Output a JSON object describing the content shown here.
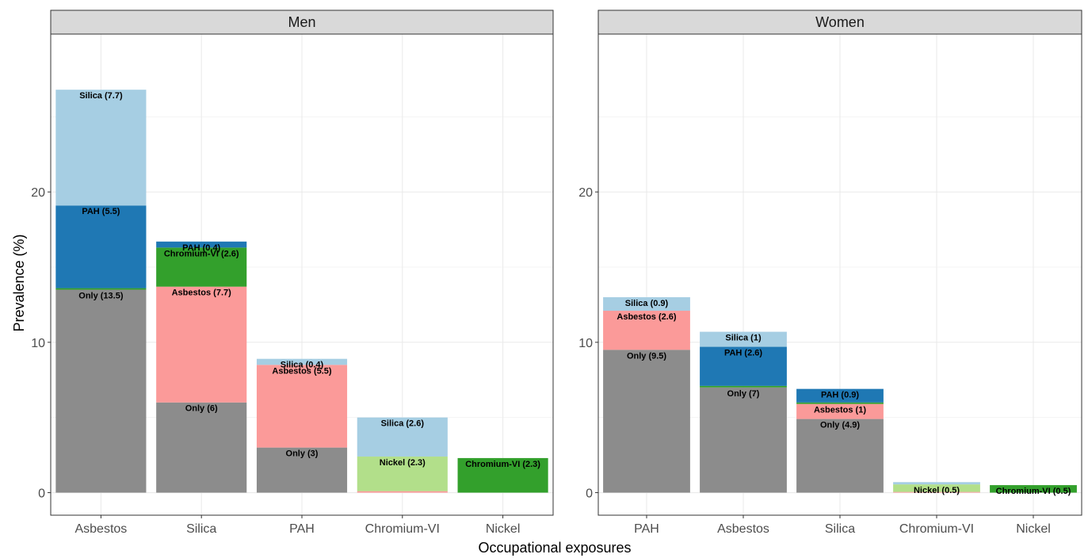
{
  "chart_data": {
    "type": "bar",
    "stacked": true,
    "xlabel": "Occupational exposures",
    "ylabel": "Prevalence (%)",
    "ylim": [
      -1.5,
      30.5
    ],
    "y_ticks": [
      0,
      10,
      20
    ],
    "grid": true,
    "colors": {
      "Only": "#8c8c8c",
      "Asbestos": "#fb9a99",
      "Silica": "#a6cee3",
      "PAH": "#1f78b4",
      "Chromium-VI": "#33a02c",
      "Nickel": "#b2df8a"
    },
    "panels": [
      {
        "title": "Men",
        "categories": [
          "Asbestos",
          "Silica",
          "PAH",
          "Chromium-VI",
          "Nickel"
        ],
        "bars": [
          {
            "category": "Asbestos",
            "segments": [
              {
                "series": "Only",
                "value": 13.5,
                "label": "Only (13.5)"
              },
              {
                "series": "Chromium-VI",
                "value": 0.1,
                "label": ""
              },
              {
                "series": "PAH",
                "value": 5.5,
                "label": "PAH (5.5)"
              },
              {
                "series": "Silica",
                "value": 7.7,
                "label": "Silica (7.7)"
              }
            ]
          },
          {
            "category": "Silica",
            "segments": [
              {
                "series": "Only",
                "value": 6,
                "label": "Only (6)"
              },
              {
                "series": "Asbestos",
                "value": 7.7,
                "label": "Asbestos (7.7)"
              },
              {
                "series": "Chromium-VI",
                "value": 2.6,
                "label": "Chromium-VI (2.6)"
              },
              {
                "series": "PAH",
                "value": 0.4,
                "label": "PAH (0.4)"
              }
            ]
          },
          {
            "category": "PAH",
            "segments": [
              {
                "series": "Only",
                "value": 3,
                "label": "Only (3)"
              },
              {
                "series": "Asbestos",
                "value": 5.5,
                "label": "Asbestos (5.5)"
              },
              {
                "series": "Silica",
                "value": 0.4,
                "label": "Silica (0.4)"
              }
            ]
          },
          {
            "category": "Chromium-VI",
            "segments": [
              {
                "series": "Asbestos",
                "value": 0.1,
                "label": ""
              },
              {
                "series": "Nickel",
                "value": 2.3,
                "label": "Nickel (2.3)"
              },
              {
                "series": "Silica",
                "value": 2.6,
                "label": "Silica (2.6)"
              }
            ]
          },
          {
            "category": "Nickel",
            "segments": [
              {
                "series": "Chromium-VI",
                "value": 2.3,
                "label": "Chromium-VI (2.3)"
              }
            ]
          }
        ]
      },
      {
        "title": "Women",
        "categories": [
          "PAH",
          "Asbestos",
          "Silica",
          "Chromium-VI",
          "Nickel"
        ],
        "bars": [
          {
            "category": "PAH",
            "segments": [
              {
                "series": "Only",
                "value": 9.5,
                "label": "Only (9.5)"
              },
              {
                "series": "Asbestos",
                "value": 2.6,
                "label": "Asbestos (2.6)"
              },
              {
                "series": "Silica",
                "value": 0.9,
                "label": "Silica (0.9)"
              }
            ]
          },
          {
            "category": "Asbestos",
            "segments": [
              {
                "series": "Only",
                "value": 7,
                "label": "Only (7)"
              },
              {
                "series": "Chromium-VI",
                "value": 0.1,
                "label": ""
              },
              {
                "series": "PAH",
                "value": 2.6,
                "label": "PAH (2.6)"
              },
              {
                "series": "Silica",
                "value": 1,
                "label": "Silica (1)"
              }
            ]
          },
          {
            "category": "Silica",
            "segments": [
              {
                "series": "Only",
                "value": 4.9,
                "label": "Only (4.9)"
              },
              {
                "series": "Asbestos",
                "value": 1,
                "label": "Asbestos (1)"
              },
              {
                "series": "Chromium-VI",
                "value": 0.1,
                "label": ""
              },
              {
                "series": "PAH",
                "value": 0.9,
                "label": "PAH (0.9)"
              }
            ]
          },
          {
            "category": "Chromium-VI",
            "segments": [
              {
                "series": "Asbestos",
                "value": 0.05,
                "label": ""
              },
              {
                "series": "Nickel",
                "value": 0.5,
                "label": "Nickel (0.5)"
              },
              {
                "series": "Silica",
                "value": 0.15,
                "label": ""
              }
            ]
          },
          {
            "category": "Nickel",
            "segments": [
              {
                "series": "Chromium-VI",
                "value": 0.5,
                "label": "Chromium-VI (0.5)"
              }
            ]
          }
        ]
      }
    ]
  }
}
